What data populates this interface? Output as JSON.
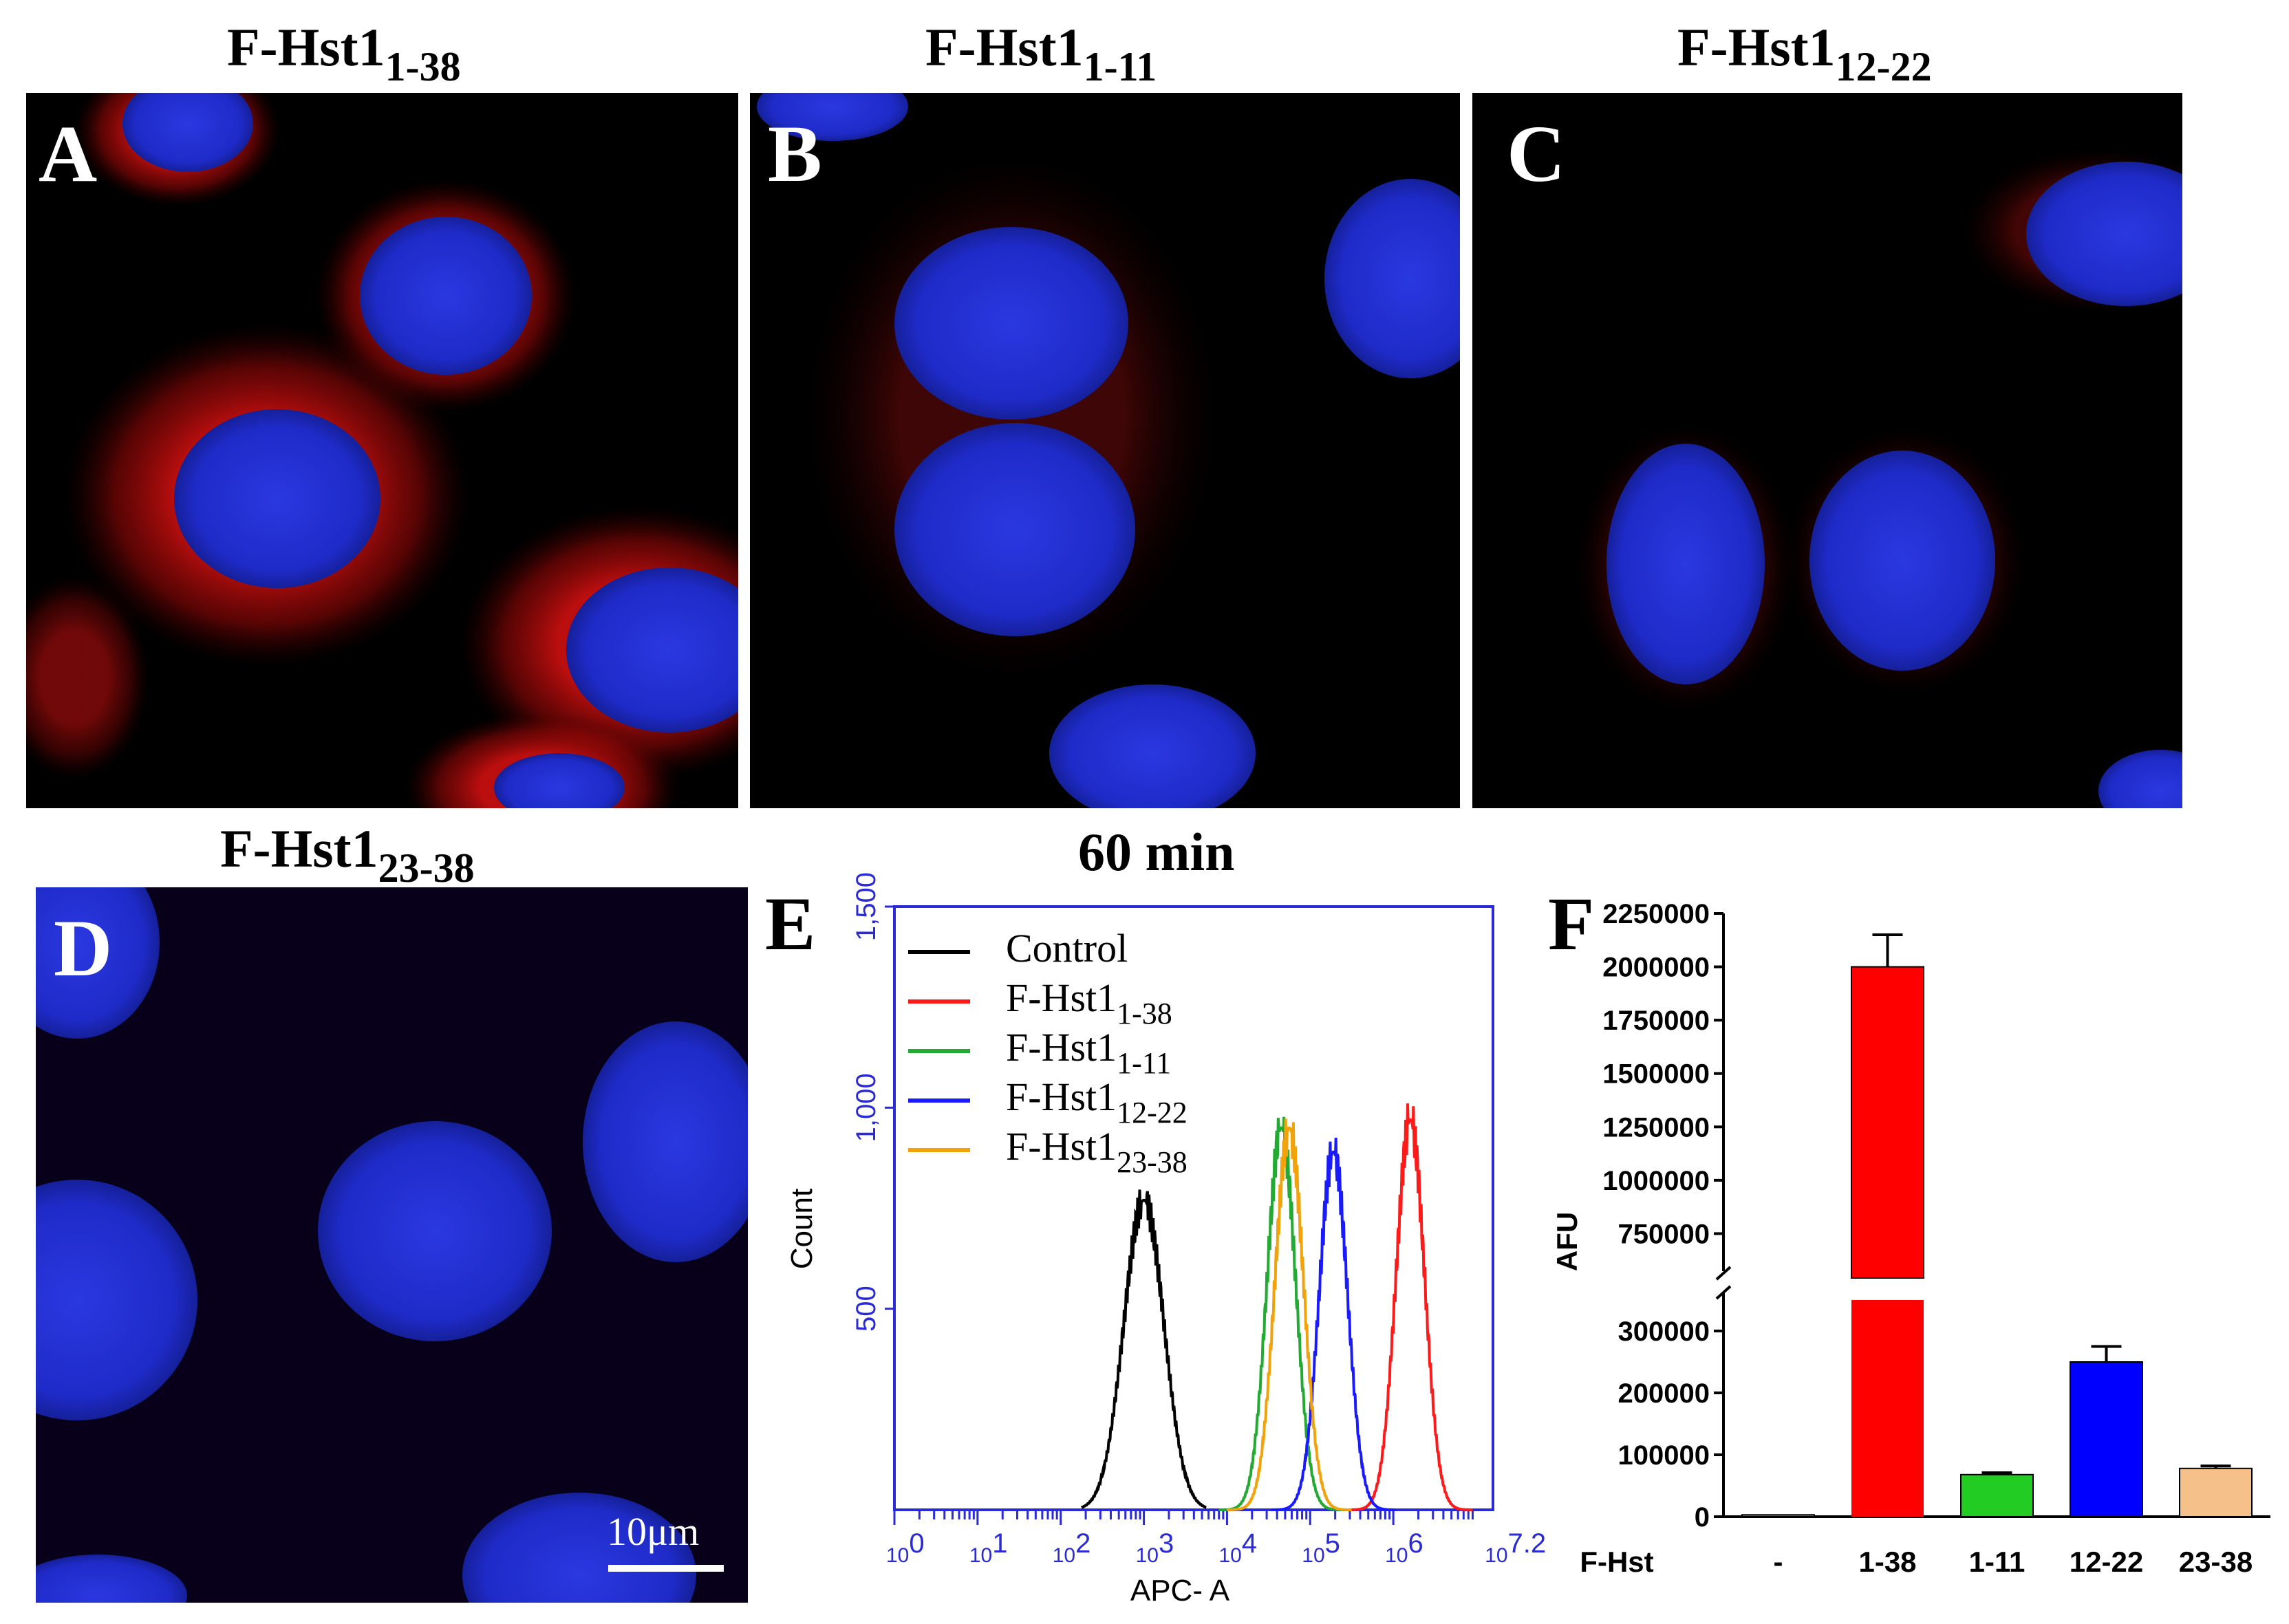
{
  "figure": {
    "panels": [
      {
        "letter": "A",
        "title": "F-Hst1",
        "subscript": "1-38"
      },
      {
        "letter": "B",
        "title": "F-Hst1",
        "subscript": "1-11"
      },
      {
        "letter": "C",
        "title": "F-Hst1",
        "subscript": "12-22"
      },
      {
        "letter": "D",
        "title": "F-Hst1",
        "subscript": "23-38"
      }
    ],
    "scale_bar": "10μm",
    "colors": {
      "nucleus": "#2233dd",
      "membrane": "#e01010",
      "background": "#000000"
    }
  },
  "panel_e": {
    "letter": "E",
    "title": "60 min",
    "xlabel": "APC- A",
    "ylabel": "Count",
    "legend": [
      {
        "label": "Control",
        "sub": "",
        "color": "#000000"
      },
      {
        "label": "F-Hst1",
        "sub": "1-38",
        "color": "#ff1a1a"
      },
      {
        "label": "F-Hst1",
        "sub": "1-11",
        "color": "#22aa33"
      },
      {
        "label": "F-Hst1",
        "sub": "12-22",
        "color": "#1a1aff"
      },
      {
        "label": "F-Hst1",
        "sub": "23-38",
        "color": "#f2a20a"
      }
    ],
    "yticks": [
      "500",
      "1,000",
      "1,500"
    ],
    "xticks": [
      {
        "base": "10",
        "exp": "0"
      },
      {
        "base": "10",
        "exp": "1"
      },
      {
        "base": "10",
        "exp": "2"
      },
      {
        "base": "10",
        "exp": "3"
      },
      {
        "base": "10",
        "exp": "4"
      },
      {
        "base": "10",
        "exp": "5"
      },
      {
        "base": "10",
        "exp": "6"
      },
      {
        "base": "10",
        "exp": "7.2"
      }
    ]
  },
  "panel_f": {
    "letter": "F",
    "ylabel": "AFU",
    "xlabel_prefix": "F-Hst"
  },
  "chart_data": [
    {
      "type": "line",
      "title": "60 min",
      "xlabel": "APC- A",
      "ylabel": "Count",
      "xscale": "log",
      "xlim": [
        1,
        15800000
      ],
      "ylim": [
        0,
        1500
      ],
      "series": [
        {
          "name": "Control",
          "peak_x": 1000,
          "peak_count": 770,
          "color": "#000000"
        },
        {
          "name": "F-Hst1 1-38",
          "peak_x": 1600000,
          "peak_count": 970,
          "color": "#ff1a1a"
        },
        {
          "name": "F-Hst1 1-11",
          "peak_x": 45000,
          "peak_count": 950,
          "color": "#22aa33"
        },
        {
          "name": "F-Hst1 12-22",
          "peak_x": 190000,
          "peak_count": 890,
          "color": "#1a1aff"
        },
        {
          "name": "F-Hst1 23-38",
          "peak_x": 56000,
          "peak_count": 950,
          "color": "#f2a20a"
        }
      ]
    },
    {
      "type": "bar",
      "ylabel": "AFU",
      "categories": [
        "-",
        "1-38",
        "1-11",
        "12-22",
        "23-38"
      ],
      "values": [
        3000,
        2000000,
        68000,
        250000,
        78000
      ],
      "errors": [
        0,
        150000,
        3000,
        25000,
        4000
      ],
      "colors": [
        "#888888",
        "#ff0000",
        "#22cc22",
        "#0000ff",
        "#f5c08a"
      ],
      "yaxis_break": [
        350000,
        600000
      ],
      "ylim_lower": [
        0,
        350000
      ],
      "ylim_upper": [
        600000,
        2250000
      ],
      "yticks_lower": [
        "0",
        "100000",
        "200000",
        "300000"
      ],
      "yticks_upper": [
        "750000",
        "1000000",
        "1250000",
        "1500000",
        "1750000",
        "2000000",
        "2250000"
      ]
    }
  ]
}
